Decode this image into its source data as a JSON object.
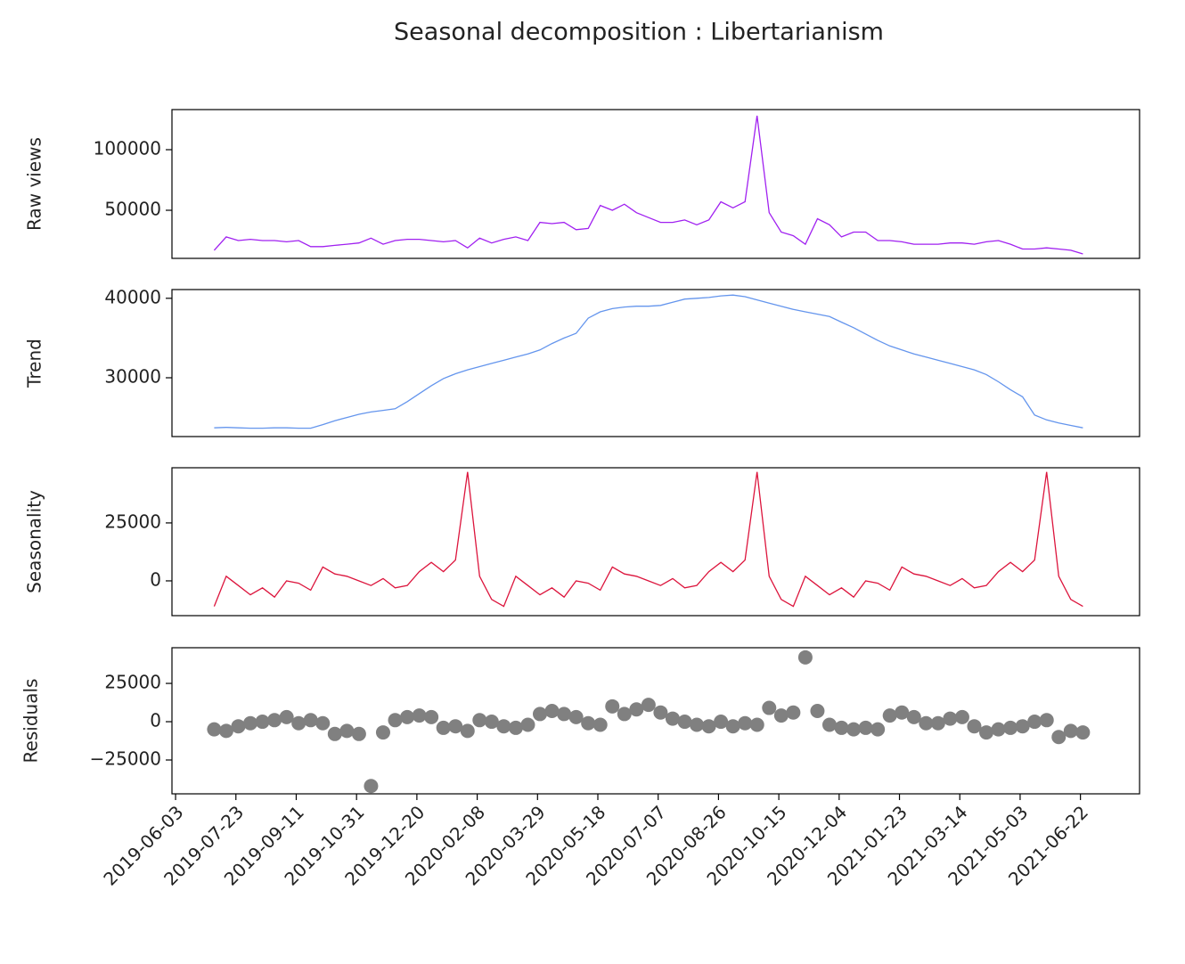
{
  "chart_data": {
    "type": "decomposition",
    "title": "Seasonal decomposition : Libertarianism",
    "x": [
      "2019-07-05",
      "2019-07-15",
      "2019-07-25",
      "2019-08-04",
      "2019-08-14",
      "2019-08-24",
      "2019-09-03",
      "2019-09-13",
      "2019-09-23",
      "2019-10-03",
      "2019-10-13",
      "2019-10-23",
      "2019-11-02",
      "2019-11-12",
      "2019-11-22",
      "2019-12-02",
      "2019-12-12",
      "2019-12-22",
      "2020-01-01",
      "2020-01-11",
      "2020-01-21",
      "2020-01-31",
      "2020-02-10",
      "2020-02-20",
      "2020-03-01",
      "2020-03-11",
      "2020-03-21",
      "2020-03-31",
      "2020-04-10",
      "2020-04-20",
      "2020-04-30",
      "2020-05-10",
      "2020-05-20",
      "2020-05-30",
      "2020-06-09",
      "2020-06-19",
      "2020-06-29",
      "2020-07-09",
      "2020-07-19",
      "2020-07-29",
      "2020-08-08",
      "2020-08-18",
      "2020-08-28",
      "2020-09-07",
      "2020-09-17",
      "2020-09-27",
      "2020-10-07",
      "2020-10-17",
      "2020-10-27",
      "2020-11-06",
      "2020-11-16",
      "2020-11-26",
      "2020-12-06",
      "2020-12-16",
      "2020-12-26",
      "2021-01-05",
      "2021-01-15",
      "2021-01-25",
      "2021-02-04",
      "2021-02-14",
      "2021-02-24",
      "2021-03-06",
      "2021-03-16",
      "2021-03-26",
      "2021-04-05",
      "2021-04-15",
      "2021-04-25",
      "2021-05-05",
      "2021-05-15",
      "2021-05-25",
      "2021-06-04",
      "2021-06-14",
      "2021-06-24"
    ],
    "xlim": [
      "2019-05-31",
      "2021-08-10"
    ],
    "xticks": [
      "2019-06-03",
      "2019-07-23",
      "2019-09-11",
      "2019-10-31",
      "2019-12-20",
      "2020-02-08",
      "2020-03-29",
      "2020-05-18",
      "2020-07-07",
      "2020-08-26",
      "2020-10-15",
      "2020-12-04",
      "2021-01-23",
      "2021-03-14",
      "2021-05-03",
      "2021-06-22"
    ],
    "panels": [
      {
        "type": "line",
        "ylabel": "Raw views",
        "color": "#a020f0",
        "ylim": [
          10300,
          133100
        ],
        "yticks": [
          50000,
          100000
        ],
        "values": [
          17000,
          28000,
          25000,
          26000,
          25000,
          25000,
          24000,
          25000,
          20000,
          20000,
          21000,
          22000,
          23000,
          27000,
          22000,
          25000,
          26000,
          26000,
          25000,
          24000,
          25000,
          19000,
          27000,
          23000,
          26000,
          28000,
          25000,
          40000,
          39000,
          40000,
          34000,
          35000,
          54000,
          50000,
          55000,
          48000,
          44000,
          40000,
          40000,
          42000,
          38000,
          42000,
          57000,
          52000,
          57000,
          128000,
          48000,
          32000,
          29000,
          22000,
          43000,
          38000,
          28000,
          32000,
          32000,
          25000,
          25000,
          24000,
          22000,
          22000,
          22000,
          23000,
          23000,
          22000,
          24000,
          25000,
          22000,
          18000,
          18000,
          19000,
          18000,
          17000,
          14000
        ]
      },
      {
        "type": "line",
        "ylabel": "Trend",
        "color": "#6495ed",
        "ylim": [
          22600,
          41100
        ],
        "yticks": [
          30000,
          40000
        ],
        "values": [
          23700,
          23750,
          23700,
          23650,
          23650,
          23700,
          23700,
          23650,
          23650,
          24100,
          24600,
          25000,
          25400,
          25700,
          25900,
          26100,
          27000,
          28000,
          29000,
          29900,
          30500,
          31000,
          31400,
          31800,
          32200,
          32600,
          33000,
          33500,
          34300,
          35000,
          35600,
          37500,
          38300,
          38700,
          38900,
          39000,
          39000,
          39100,
          39500,
          39900,
          40000,
          40100,
          40300,
          40400,
          40200,
          39800,
          39400,
          39000,
          38600,
          38300,
          38000,
          37700,
          37000,
          36300,
          35500,
          34700,
          34000,
          33500,
          33000,
          32600,
          32200,
          31800,
          31400,
          31000,
          30400,
          29500,
          28500,
          27600,
          25300,
          24700,
          24300,
          24000,
          23700
        ]
      },
      {
        "type": "line",
        "ylabel": "Seasonality",
        "color": "#dc143c",
        "ylim": [
          -15000,
          48800
        ],
        "yticks": [
          0,
          25000
        ],
        "values": [
          -11000,
          2000,
          -2000,
          -6000,
          -3000,
          -7000,
          0,
          -1000,
          -4000,
          6000,
          3000,
          2000,
          0,
          -2000,
          1000,
          -3000,
          -2000,
          4000,
          8000,
          4000,
          9000,
          47000,
          2000,
          -8000,
          -11000,
          2000,
          -2000,
          -6000,
          -3000,
          -7000,
          0,
          -1000,
          -4000,
          6000,
          3000,
          2000,
          0,
          -2000,
          1000,
          -3000,
          -2000,
          4000,
          8000,
          4000,
          9000,
          47000,
          2000,
          -8000,
          -11000,
          2000,
          -2000,
          -6000,
          -3000,
          -7000,
          0,
          -1000,
          -4000,
          6000,
          3000,
          2000,
          0,
          -2000,
          1000,
          -3000,
          -2000,
          4000,
          8000,
          4000,
          9000,
          47000,
          2000,
          -8000,
          -11000
        ]
      },
      {
        "type": "scatter",
        "ylabel": "Residuals",
        "color": "#808080",
        "ylim": [
          -47100,
          48300
        ],
        "yticks": [
          {
            "value": -25000,
            "label": "−25000"
          },
          0,
          25000
        ],
        "values": [
          -5000,
          -6000,
          -3000,
          -1000,
          0,
          1000,
          3000,
          -1000,
          1000,
          -1000,
          -8000,
          -6000,
          -8000,
          -42000,
          -7000,
          1000,
          3000,
          4000,
          3000,
          -4000,
          -3000,
          -6000,
          1000,
          0,
          -3000,
          -4000,
          -2000,
          5000,
          7000,
          5000,
          3000,
          -1000,
          -2000,
          10000,
          5000,
          8000,
          11000,
          6000,
          2000,
          0,
          -2000,
          -3000,
          0,
          -3000,
          -1000,
          -2000,
          9000,
          4000,
          6000,
          42000,
          7000,
          -2000,
          -4000,
          -5000,
          -4000,
          -5000,
          4000,
          6000,
          3000,
          -1000,
          -1000,
          2000,
          3000,
          -3000,
          -7000,
          -5000,
          -4000,
          -3000,
          0,
          1000,
          -10000,
          -6000,
          -7000
        ]
      }
    ]
  }
}
